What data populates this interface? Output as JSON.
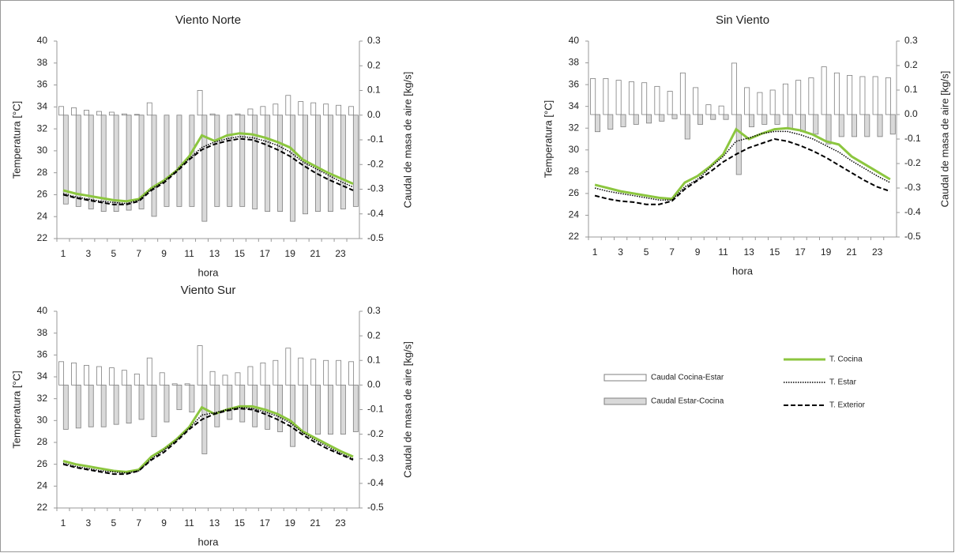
{
  "chart_data": [
    {
      "type": "bar-line",
      "title": "Viento Norte",
      "x_label": "hora",
      "y_label": "Temperatura [°C]",
      "y2_label": "Caudal de masa de aire [kg/s]",
      "categories": [
        1,
        null,
        3,
        null,
        5,
        null,
        7,
        null,
        9,
        null,
        11,
        null,
        13,
        null,
        15,
        null,
        17,
        null,
        19,
        null,
        21,
        null,
        23,
        null
      ],
      "ylim": [
        22,
        40
      ],
      "yticks": [
        22,
        24,
        26,
        28,
        30,
        32,
        34,
        36,
        38,
        40
      ],
      "y2lim": [
        -0.5,
        0.3
      ],
      "y2ticks": [
        -0.5,
        -0.4,
        -0.3,
        -0.2,
        -0.1,
        {
          "value": 0,
          "label": "0.0"
        },
        0.1,
        0.2,
        0.3
      ],
      "grid": false,
      "bar_edgecolor": "#7f7f7f",
      "series": [
        {
          "name": "Caudal Cocina-Estar",
          "type": "bar",
          "axis": "y2",
          "color": "#ffffff",
          "values": [
            0.035,
            0.03,
            0.02,
            0.015,
            0.012,
            0.005,
            0.003,
            0.05,
            0,
            0,
            0,
            0.1,
            0.005,
            0,
            0.005,
            0.025,
            0.035,
            0.045,
            0.08,
            0.055,
            0.05,
            0.045,
            0.04,
            0.035
          ]
        },
        {
          "name": "Caudal Estar-Cocina",
          "type": "bar",
          "axis": "y2",
          "color": "#d9d9d9",
          "values": [
            -0.36,
            -0.37,
            -0.38,
            -0.39,
            -0.39,
            -0.385,
            -0.38,
            -0.41,
            -0.37,
            -0.37,
            -0.37,
            -0.43,
            -0.37,
            -0.37,
            -0.37,
            -0.38,
            -0.39,
            -0.39,
            -0.43,
            -0.4,
            -0.39,
            -0.39,
            -0.38,
            -0.37
          ]
        },
        {
          "name": "T. Cocina",
          "type": "line",
          "color": "#8cc63f",
          "linestyle": "solid",
          "values": [
            26.4,
            26.1,
            25.9,
            25.7,
            25.5,
            25.4,
            25.6,
            26.6,
            27.3,
            28.2,
            29.5,
            31.4,
            30.9,
            31.4,
            31.6,
            31.5,
            31.2,
            30.8,
            30.3,
            29.2,
            28.6,
            28.0,
            27.5,
            27.0
          ]
        },
        {
          "name": "T. Estar",
          "type": "line",
          "color": "#000000",
          "linestyle": "dotted",
          "values": [
            26.1,
            25.8,
            25.6,
            25.4,
            25.3,
            25.2,
            25.5,
            26.5,
            27.2,
            28.2,
            29.3,
            30.3,
            30.8,
            31.1,
            31.3,
            31.2,
            30.9,
            30.5,
            29.9,
            29.0,
            28.4,
            27.8,
            27.2,
            26.7
          ]
        },
        {
          "name": "T. Exterior",
          "type": "line",
          "color": "#000000",
          "linestyle": "dashed",
          "values": [
            26.0,
            25.7,
            25.5,
            25.3,
            25.1,
            25.1,
            25.4,
            26.4,
            27.1,
            28.1,
            29.2,
            30.1,
            30.6,
            30.9,
            31.1,
            31.0,
            30.6,
            30.1,
            29.5,
            28.7,
            28.0,
            27.4,
            26.9,
            26.4
          ]
        }
      ]
    },
    {
      "type": "bar-line",
      "title": "Sin Viento",
      "x_label": "hora",
      "y_label": "Temperatura [°C]",
      "y2_label": "Caudal de masa de aire [kg/s]",
      "categories": [
        1,
        null,
        3,
        null,
        5,
        null,
        7,
        null,
        9,
        null,
        11,
        null,
        13,
        null,
        15,
        null,
        17,
        null,
        19,
        null,
        21,
        null,
        23,
        null
      ],
      "ylim": [
        22,
        40
      ],
      "yticks": [
        22,
        24,
        26,
        28,
        30,
        32,
        34,
        36,
        38,
        40
      ],
      "y2lim": [
        -0.5,
        0.3
      ],
      "y2ticks": [
        -0.5,
        -0.4,
        -0.3,
        -0.2,
        -0.1,
        {
          "value": 0,
          "label": "0.0"
        },
        0.1,
        0.2,
        0.3
      ],
      "grid": false,
      "bar_edgecolor": "#7f7f7f",
      "series": [
        {
          "type": "bar",
          "axis": "y2",
          "color": "#ffffff",
          "values": [
            0.147,
            0.147,
            0.14,
            0.134,
            0.13,
            0.115,
            0.095,
            0.17,
            0.11,
            0.04,
            0.035,
            0.21,
            0.11,
            0.09,
            0.1,
            0.125,
            0.14,
            0.15,
            0.195,
            0.17,
            0.16,
            0.155,
            0.155,
            0.15
          ]
        },
        {
          "type": "bar",
          "axis": "y2",
          "color": "#d9d9d9",
          "values": [
            -0.07,
            -0.06,
            -0.05,
            -0.04,
            -0.035,
            -0.027,
            -0.017,
            -0.1,
            -0.04,
            -0.02,
            -0.02,
            -0.245,
            -0.05,
            -0.04,
            -0.04,
            -0.06,
            -0.07,
            -0.08,
            -0.12,
            -0.09,
            -0.09,
            -0.09,
            -0.09,
            -0.08
          ]
        },
        {
          "type": "line",
          "color": "#8cc63f",
          "linestyle": "solid",
          "values": [
            26.8,
            26.5,
            26.2,
            26.0,
            25.8,
            25.6,
            25.5,
            27.0,
            27.6,
            28.5,
            29.6,
            31.9,
            31.0,
            31.5,
            31.9,
            32.0,
            31.8,
            31.4,
            30.8,
            30.5,
            29.4,
            28.7,
            28.0,
            27.3
          ]
        },
        {
          "type": "line",
          "color": "#000000",
          "linestyle": "dotted",
          "values": [
            26.5,
            26.2,
            26.0,
            25.8,
            25.6,
            25.4,
            25.4,
            26.6,
            27.3,
            28.4,
            29.4,
            30.8,
            31.1,
            31.5,
            31.7,
            31.7,
            31.4,
            31.0,
            30.4,
            29.8,
            29.0,
            28.3,
            27.6,
            27.0
          ]
        },
        {
          "type": "line",
          "color": "#000000",
          "linestyle": "dashed",
          "values": [
            25.8,
            25.5,
            25.3,
            25.2,
            25.0,
            25.0,
            25.3,
            26.4,
            27.2,
            28.0,
            28.9,
            29.6,
            30.2,
            30.6,
            31.0,
            30.8,
            30.4,
            29.9,
            29.3,
            28.6,
            27.9,
            27.2,
            26.6,
            26.2
          ]
        }
      ]
    },
    {
      "type": "bar-line",
      "title": "Viento Sur",
      "x_label": "hora",
      "y_label": "Temperatura [°C]",
      "y2_label": "Caudal de masa de aire [kg/s]",
      "categories": [
        1,
        null,
        3,
        null,
        5,
        null,
        7,
        null,
        9,
        null,
        11,
        null,
        13,
        null,
        15,
        null,
        17,
        null,
        19,
        null,
        21,
        null,
        23,
        null
      ],
      "ylim": [
        22,
        40
      ],
      "yticks": [
        22,
        24,
        26,
        28,
        30,
        32,
        34,
        36,
        38,
        40
      ],
      "y2lim": [
        -0.5,
        0.3
      ],
      "y2ticks": [
        -0.5,
        -0.4,
        -0.3,
        -0.2,
        -0.1,
        {
          "value": 0,
          "label": "0.0"
        },
        0.1,
        0.2,
        0.3
      ],
      "grid": false,
      "bar_edgecolor": "#7f7f7f",
      "series": [
        {
          "type": "bar",
          "axis": "y2",
          "color": "#ffffff",
          "values": [
            0.095,
            0.09,
            0.08,
            0.075,
            0.07,
            0.06,
            0.045,
            0.11,
            0.05,
            0.005,
            0.005,
            0.16,
            0.055,
            0.04,
            0.05,
            0.075,
            0.09,
            0.1,
            0.15,
            0.11,
            0.105,
            0.1,
            0.1,
            0.095
          ]
        },
        {
          "type": "bar",
          "axis": "y2",
          "color": "#d9d9d9",
          "values": [
            -0.18,
            -0.175,
            -0.17,
            -0.17,
            -0.16,
            -0.155,
            -0.14,
            -0.21,
            -0.15,
            -0.1,
            -0.11,
            -0.28,
            -0.17,
            -0.14,
            -0.15,
            -0.17,
            -0.18,
            -0.19,
            -0.25,
            -0.2,
            -0.2,
            -0.2,
            -0.2,
            -0.19
          ]
        },
        {
          "type": "line",
          "color": "#8cc63f",
          "linestyle": "solid",
          "values": [
            26.3,
            26.0,
            25.8,
            25.6,
            25.4,
            25.3,
            25.5,
            26.7,
            27.4,
            28.3,
            29.4,
            31.2,
            30.6,
            31.0,
            31.3,
            31.3,
            31.0,
            30.6,
            30.0,
            29.0,
            28.4,
            27.8,
            27.2,
            26.7
          ]
        },
        {
          "type": "line",
          "color": "#000000",
          "linestyle": "dotted",
          "values": [
            26.1,
            25.8,
            25.6,
            25.4,
            25.3,
            25.2,
            25.4,
            26.5,
            27.3,
            28.2,
            29.3,
            30.5,
            30.7,
            31.0,
            31.2,
            31.1,
            30.8,
            30.4,
            29.8,
            28.9,
            28.2,
            27.6,
            27.0,
            26.5
          ]
        },
        {
          "type": "line",
          "color": "#000000",
          "linestyle": "dashed",
          "values": [
            26.0,
            25.7,
            25.5,
            25.3,
            25.1,
            25.1,
            25.4,
            26.4,
            27.1,
            28.1,
            29.2,
            30.1,
            30.6,
            30.9,
            31.1,
            31.0,
            30.6,
            30.1,
            29.5,
            28.7,
            28.0,
            27.4,
            26.9,
            26.4
          ]
        }
      ]
    }
  ]
}
